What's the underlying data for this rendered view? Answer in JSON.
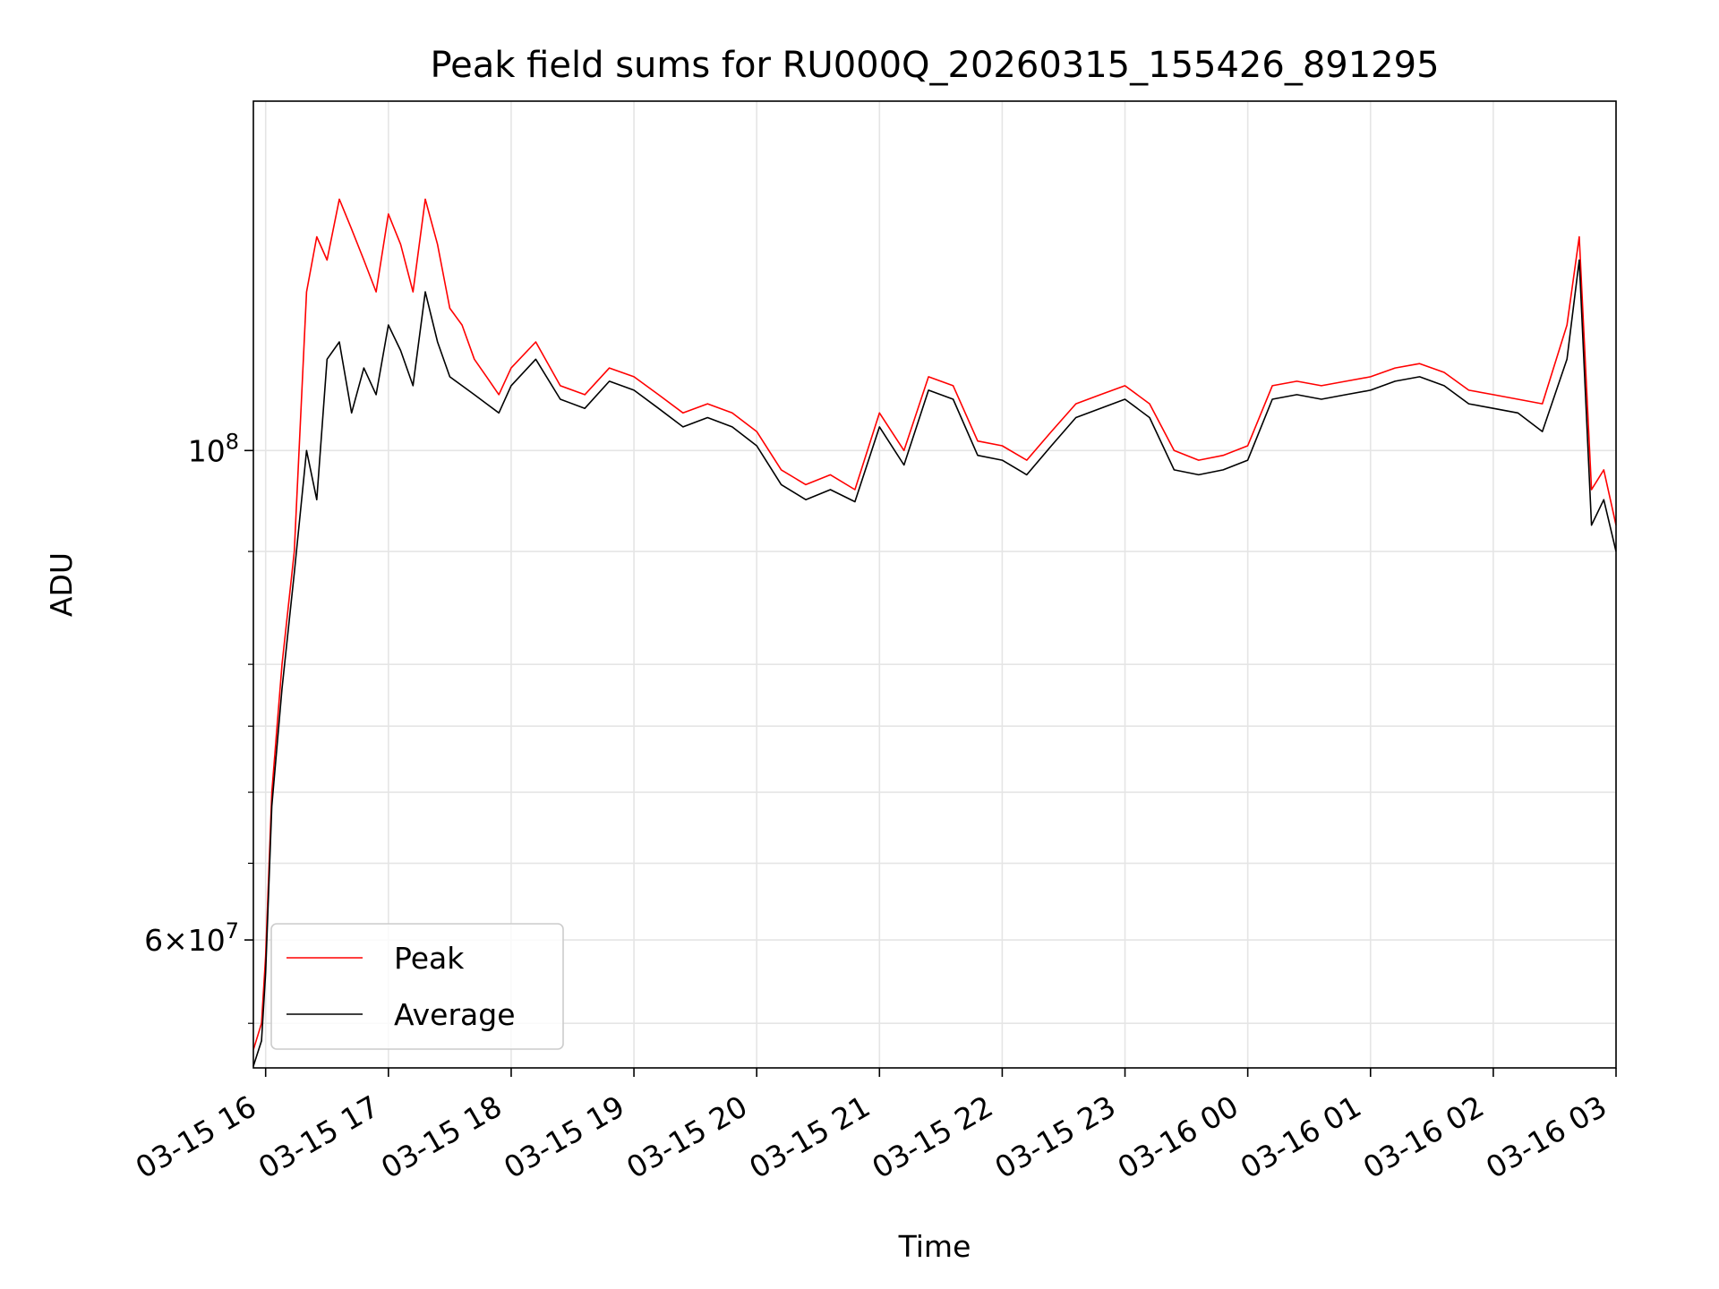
{
  "chart_data": {
    "type": "line",
    "title": "Peak field sums for RU000Q_20260315_155426_891295",
    "xlabel": "Time",
    "ylabel": "ADU",
    "yscale": "log",
    "ylim": [
      52500000,
      144000000
    ],
    "x_range": [
      "2026-03-15 15:54",
      "2026-03-16 03:00"
    ],
    "x_tick_values": [
      "2026-03-15 16:00",
      "2026-03-15 17:00",
      "2026-03-15 18:00",
      "2026-03-15 19:00",
      "2026-03-15 20:00",
      "2026-03-15 21:00",
      "2026-03-15 22:00",
      "2026-03-15 23:00",
      "2026-03-16 00:00",
      "2026-03-16 01:00",
      "2026-03-16 02:00",
      "2026-03-16 03:00"
    ],
    "x_tick_labels": [
      "03-15 16",
      "03-15 17",
      "03-15 18",
      "03-15 19",
      "03-15 20",
      "03-15 21",
      "03-15 22",
      "03-15 23",
      "03-16 00",
      "03-16 01",
      "03-16 02",
      "03-16 03"
    ],
    "y_ticks": [
      {
        "value": 100000000,
        "mantissa": "",
        "base": "10",
        "exponent": "8"
      },
      {
        "value": 60000000,
        "mantissa": "6×",
        "base": "10",
        "exponent": "7"
      }
    ],
    "y_minor_ticks": [
      55000000,
      65000000,
      70000000,
      75000000,
      80000000,
      90000000
    ],
    "grid": true,
    "legend_position": "lower-left",
    "colors": {
      "peak": "#ff0000",
      "average": "#000000",
      "grid": "#e5e5e5"
    },
    "series": [
      {
        "name": "Peak",
        "key": "peak",
        "x": [
          "2026-03-15 15:54",
          "2026-03-15 15:58",
          "2026-03-15 16:00",
          "2026-03-15 16:03",
          "2026-03-15 16:08",
          "2026-03-15 16:14",
          "2026-03-15 16:20",
          "2026-03-15 16:25",
          "2026-03-15 16:30",
          "2026-03-15 16:36",
          "2026-03-15 16:42",
          "2026-03-15 16:48",
          "2026-03-15 16:54",
          "2026-03-15 17:00",
          "2026-03-15 17:06",
          "2026-03-15 17:12",
          "2026-03-15 17:18",
          "2026-03-15 17:24",
          "2026-03-15 17:30",
          "2026-03-15 17:36",
          "2026-03-15 17:42",
          "2026-03-15 17:48",
          "2026-03-15 17:54",
          "2026-03-15 18:00",
          "2026-03-15 18:12",
          "2026-03-15 18:24",
          "2026-03-15 18:36",
          "2026-03-15 18:48",
          "2026-03-15 19:00",
          "2026-03-15 19:12",
          "2026-03-15 19:24",
          "2026-03-15 19:36",
          "2026-03-15 19:48",
          "2026-03-15 20:00",
          "2026-03-15 20:12",
          "2026-03-15 20:24",
          "2026-03-15 20:36",
          "2026-03-15 20:48",
          "2026-03-15 21:00",
          "2026-03-15 21:12",
          "2026-03-15 21:24",
          "2026-03-15 21:36",
          "2026-03-15 21:48",
          "2026-03-15 22:00",
          "2026-03-15 22:12",
          "2026-03-15 22:24",
          "2026-03-15 22:36",
          "2026-03-15 22:48",
          "2026-03-15 23:00",
          "2026-03-15 23:12",
          "2026-03-15 23:24",
          "2026-03-15 23:36",
          "2026-03-15 23:48",
          "2026-03-16 00:00",
          "2026-03-16 00:12",
          "2026-03-16 00:24",
          "2026-03-16 00:36",
          "2026-03-16 00:48",
          "2026-03-16 01:00",
          "2026-03-16 01:12",
          "2026-03-16 01:24",
          "2026-03-16 01:36",
          "2026-03-16 01:48",
          "2026-03-16 02:00",
          "2026-03-16 02:12",
          "2026-03-16 02:24",
          "2026-03-16 02:36",
          "2026-03-16 02:42",
          "2026-03-16 02:48",
          "2026-03-16 02:54",
          "2026-03-16 03:00"
        ],
        "y": [
          53500000,
          55000000,
          59000000,
          70000000,
          80000000,
          90000000,
          118000000,
          125000000,
          122000000,
          130000000,
          126000000,
          122000000,
          118000000,
          128000000,
          124000000,
          118000000,
          130000000,
          124000000,
          116000000,
          114000000,
          110000000,
          108000000,
          106000000,
          109000000,
          112000000,
          107000000,
          106000000,
          109000000,
          108000000,
          106000000,
          104000000,
          105000000,
          104000000,
          102000000,
          98000000,
          96500000,
          97500000,
          96000000,
          104000000,
          100000000,
          108000000,
          107000000,
          101000000,
          100500000,
          99000000,
          102000000,
          105000000,
          106000000,
          107000000,
          105000000,
          100000000,
          99000000,
          99500000,
          100500000,
          107000000,
          107500000,
          107000000,
          107500000,
          108000000,
          109000000,
          109500000,
          108500000,
          106500000,
          106000000,
          105500000,
          105000000,
          114000000,
          125000000,
          96000000,
          98000000,
          92500000
        ]
      },
      {
        "name": "Average",
        "key": "average",
        "x": [
          "2026-03-15 15:54",
          "2026-03-15 15:58",
          "2026-03-15 16:00",
          "2026-03-15 16:03",
          "2026-03-15 16:08",
          "2026-03-15 16:14",
          "2026-03-15 16:20",
          "2026-03-15 16:25",
          "2026-03-15 16:30",
          "2026-03-15 16:36",
          "2026-03-15 16:42",
          "2026-03-15 16:48",
          "2026-03-15 16:54",
          "2026-03-15 17:00",
          "2026-03-15 17:06",
          "2026-03-15 17:12",
          "2026-03-15 17:18",
          "2026-03-15 17:24",
          "2026-03-15 17:30",
          "2026-03-15 17:36",
          "2026-03-15 17:42",
          "2026-03-15 17:48",
          "2026-03-15 17:54",
          "2026-03-15 18:00",
          "2026-03-15 18:12",
          "2026-03-15 18:24",
          "2026-03-15 18:36",
          "2026-03-15 18:48",
          "2026-03-15 19:00",
          "2026-03-15 19:12",
          "2026-03-15 19:24",
          "2026-03-15 19:36",
          "2026-03-15 19:48",
          "2026-03-15 20:00",
          "2026-03-15 20:12",
          "2026-03-15 20:24",
          "2026-03-15 20:36",
          "2026-03-15 20:48",
          "2026-03-15 21:00",
          "2026-03-15 21:12",
          "2026-03-15 21:24",
          "2026-03-15 21:36",
          "2026-03-15 21:48",
          "2026-03-15 22:00",
          "2026-03-15 22:12",
          "2026-03-15 22:24",
          "2026-03-15 22:36",
          "2026-03-15 22:48",
          "2026-03-15 23:00",
          "2026-03-15 23:12",
          "2026-03-15 23:24",
          "2026-03-15 23:36",
          "2026-03-15 23:48",
          "2026-03-16 00:00",
          "2026-03-16 00:12",
          "2026-03-16 00:24",
          "2026-03-16 00:36",
          "2026-03-16 00:48",
          "2026-03-16 01:00",
          "2026-03-16 01:12",
          "2026-03-16 01:24",
          "2026-03-16 01:36",
          "2026-03-16 01:48",
          "2026-03-16 02:00",
          "2026-03-16 02:12",
          "2026-03-16 02:24",
          "2026-03-16 02:36",
          "2026-03-16 02:42",
          "2026-03-16 02:48",
          "2026-03-16 02:54",
          "2026-03-16 03:00"
        ],
        "y": [
          52600000,
          54000000,
          58000000,
          69000000,
          78000000,
          88000000,
          100000000,
          95000000,
          110000000,
          112000000,
          104000000,
          109000000,
          106000000,
          114000000,
          111000000,
          107000000,
          118000000,
          112000000,
          108000000,
          107000000,
          106000000,
          105000000,
          104000000,
          107000000,
          110000000,
          105500000,
          104500000,
          107500000,
          106500000,
          104500000,
          102500000,
          103500000,
          102500000,
          100500000,
          96500000,
          95000000,
          96000000,
          94800000,
          102500000,
          98500000,
          106500000,
          105500000,
          99500000,
          99000000,
          97500000,
          100500000,
          103500000,
          104500000,
          105500000,
          103500000,
          98000000,
          97500000,
          98000000,
          99000000,
          105500000,
          106000000,
          105500000,
          106000000,
          106500000,
          107500000,
          108000000,
          107000000,
          105000000,
          104500000,
          104000000,
          102000000,
          110000000,
          122000000,
          92500000,
          95000000,
          90000000
        ]
      }
    ]
  }
}
